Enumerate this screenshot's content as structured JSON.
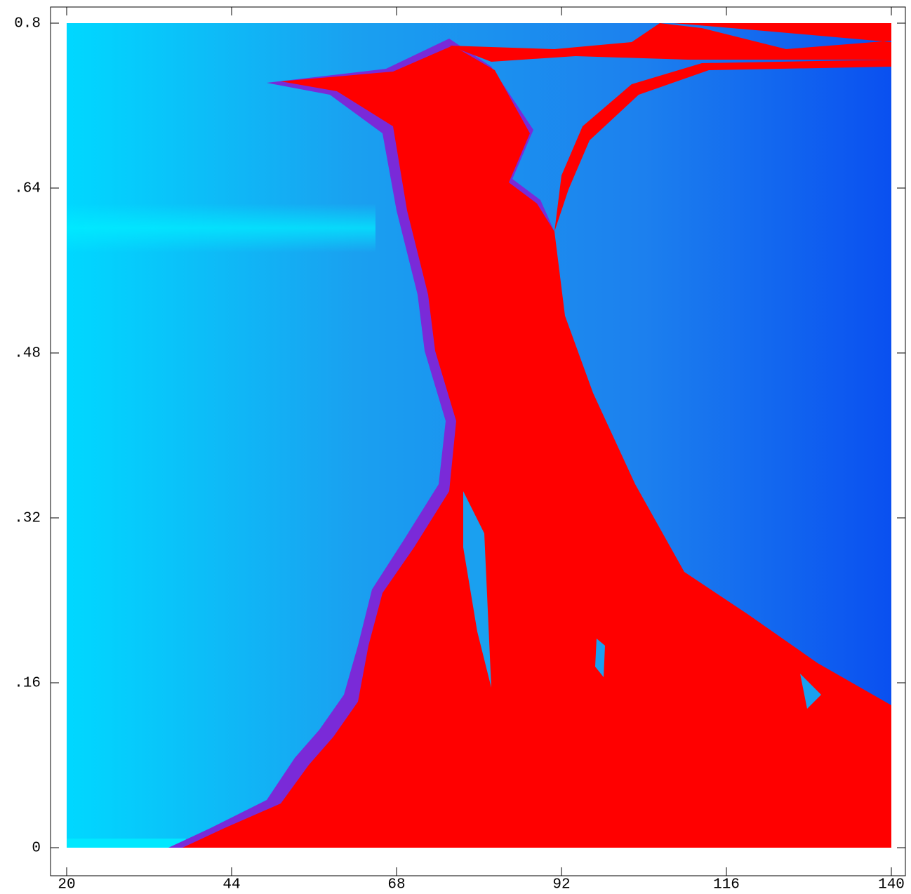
{
  "chart_data": {
    "type": "heatmap",
    "xlim": [
      20,
      140
    ],
    "ylim": [
      0,
      0.8
    ],
    "xticks": [
      20,
      44,
      68,
      92,
      116,
      140
    ],
    "yticks": [
      0,
      {
        "value": 0.16,
        "label": ".16"
      },
      {
        "value": 0.32,
        "label": ".32"
      },
      {
        "value": 0.48,
        "label": ".48"
      },
      {
        "value": 0.64,
        "label": ".64"
      },
      0.8
    ]
  }
}
